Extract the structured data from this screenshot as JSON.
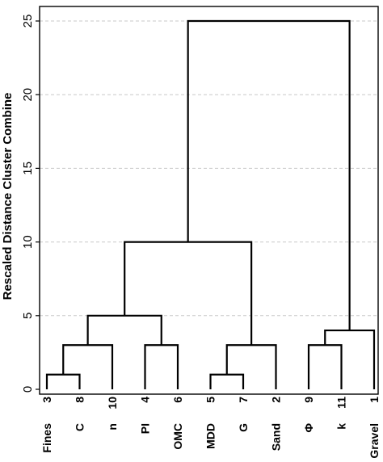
{
  "chart_data": {
    "type": "dendrogram",
    "ylabel": "Rescaled Distance Cluster Combine",
    "ylim": [
      0,
      25
    ],
    "yticks": [
      0,
      5,
      10,
      15,
      20,
      25
    ],
    "grid": true,
    "leaves": [
      {
        "id": "3",
        "variable": "Fines"
      },
      {
        "id": "8",
        "variable": "C"
      },
      {
        "id": "10",
        "variable": "n"
      },
      {
        "id": "4",
        "variable": "PI"
      },
      {
        "id": "6",
        "variable": "OMC"
      },
      {
        "id": "5",
        "variable": "MDD"
      },
      {
        "id": "7",
        "variable": "G"
      },
      {
        "id": "2",
        "variable": "Sand"
      },
      {
        "id": "9",
        "variable": "Φ"
      },
      {
        "id": "11",
        "variable": "k"
      },
      {
        "id": "1",
        "variable": "Gravel"
      }
    ],
    "merges": [
      {
        "left": "L0",
        "right": "L1",
        "height": 1
      },
      {
        "left": "L5",
        "right": "L6",
        "height": 1
      },
      {
        "left": "M0",
        "right": "L2",
        "height": 3
      },
      {
        "left": "L3",
        "right": "L4",
        "height": 3
      },
      {
        "left": "M1",
        "right": "L7",
        "height": 3
      },
      {
        "left": "L8",
        "right": "L9",
        "height": 3
      },
      {
        "left": "M5",
        "right": "L10",
        "height": 4
      },
      {
        "left": "M2",
        "right": "M3",
        "height": 5
      },
      {
        "left": "M7",
        "right": "M4",
        "height": 10
      },
      {
        "left": "M8",
        "right": "M6",
        "height": 25
      }
    ]
  }
}
